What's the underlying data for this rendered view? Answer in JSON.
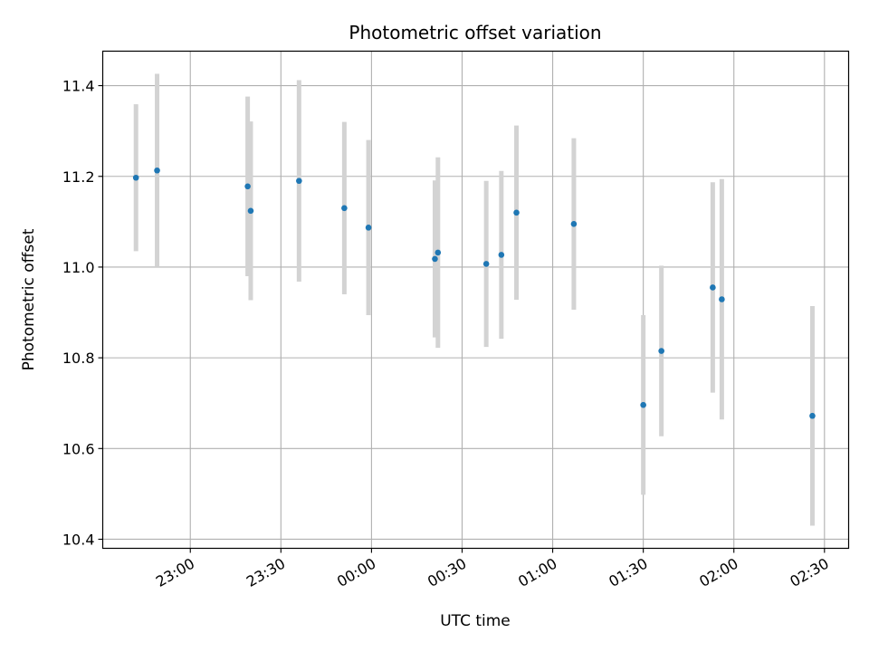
{
  "chart_data": {
    "type": "scatter",
    "title": "Photometric offset variation",
    "xlabel": "UTC time",
    "ylabel": "Photometric offset",
    "x_ticks": [
      "23:00",
      "23:30",
      "00:00",
      "00:30",
      "01:00",
      "01:30",
      "02:00",
      "02:30"
    ],
    "x_tick_minutes": [
      0,
      30,
      60,
      90,
      120,
      150,
      180,
      210
    ],
    "xlim_minutes": [
      -29,
      218
    ],
    "y_ticks": [
      "10.4",
      "10.6",
      "10.8",
      "11.0",
      "11.2",
      "11.4"
    ],
    "y_tick_values": [
      10.4,
      10.6,
      10.8,
      11.0,
      11.2,
      11.4
    ],
    "ylim": [
      10.38,
      11.476
    ],
    "grid": true,
    "x_tick_rotation": "30deg",
    "marker_color": "#1f77b4",
    "errorbar_color": "#d3d3d3",
    "series": [
      {
        "points": [
          {
            "t": "22:42",
            "y": 11.197,
            "err": 0.162
          },
          {
            "t": "22:49",
            "y": 11.213,
            "err": 0.213
          },
          {
            "t": "23:19",
            "y": 11.178,
            "err": 0.198
          },
          {
            "t": "23:20",
            "y": 11.124,
            "err": 0.197
          },
          {
            "t": "23:36",
            "y": 11.19,
            "err": 0.222
          },
          {
            "t": "23:51",
            "y": 11.13,
            "err": 0.19
          },
          {
            "t": "23:59",
            "y": 11.087,
            "err": 0.193
          },
          {
            "t": "00:21",
            "y": 11.018,
            "err": 0.173
          },
          {
            "t": "00:22",
            "y": 11.032,
            "err": 0.21
          },
          {
            "t": "00:38",
            "y": 11.007,
            "err": 0.183
          },
          {
            "t": "00:43",
            "y": 11.027,
            "err": 0.185
          },
          {
            "t": "00:48",
            "y": 11.12,
            "err": 0.192
          },
          {
            "t": "01:07",
            "y": 11.095,
            "err": 0.189
          },
          {
            "t": "01:30",
            "y": 10.696,
            "err": 0.198
          },
          {
            "t": "01:36",
            "y": 10.815,
            "err": 0.188
          },
          {
            "t": "01:53",
            "y": 10.955,
            "err": 0.232
          },
          {
            "t": "01:56",
            "y": 10.929,
            "err": 0.265
          },
          {
            "t": "02:26",
            "y": 10.672,
            "err": 0.242
          }
        ]
      }
    ]
  }
}
